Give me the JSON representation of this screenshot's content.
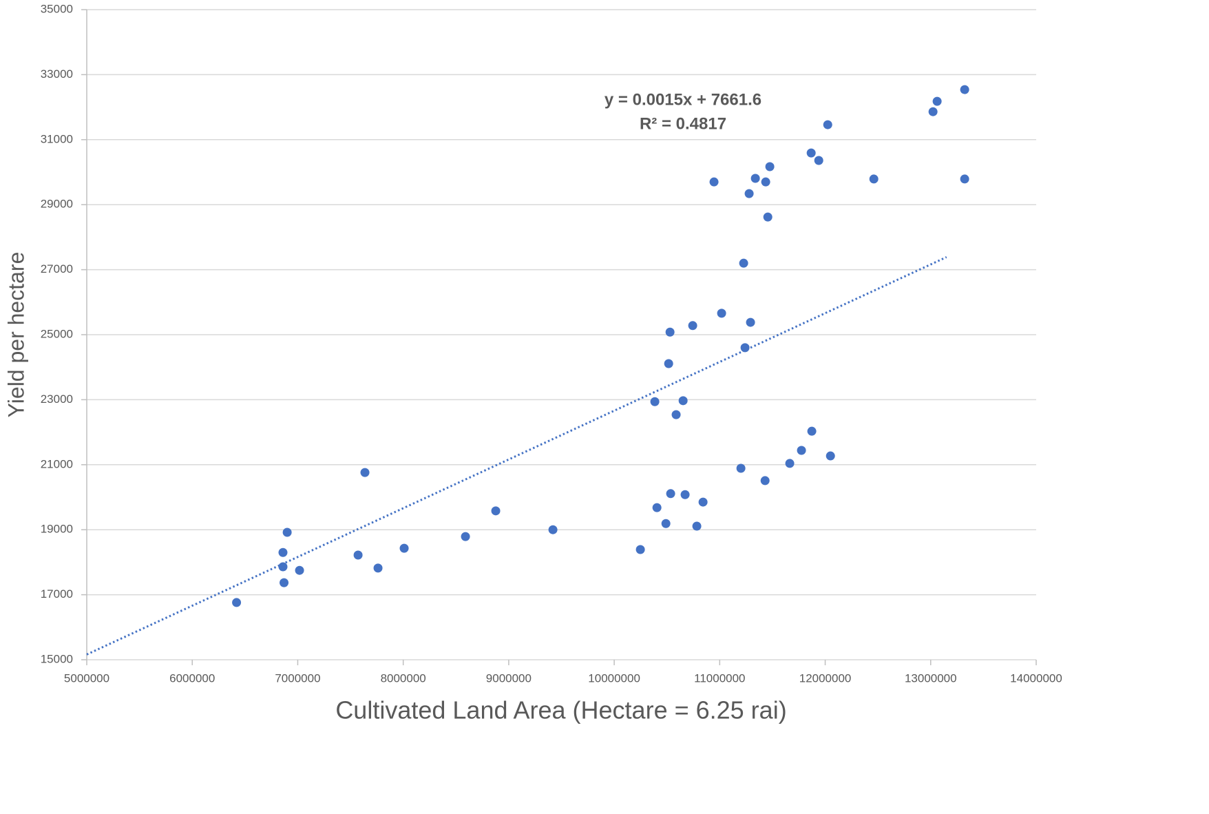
{
  "chart_data": {
    "type": "scatter",
    "x_label": "Cultivated Land Area (Hectare = 6.25 rai)",
    "y_label": "Yield per hectare",
    "xlim": [
      5000000,
      14000000
    ],
    "xticks": [
      5000000,
      6000000,
      7000000,
      8000000,
      9000000,
      10000000,
      11000000,
      12000000,
      13000000,
      14000000
    ],
    "ylim": [
      15000,
      35000
    ],
    "yticks": [
      15000,
      17000,
      19000,
      21000,
      23000,
      25000,
      27000,
      29000,
      31000,
      33000,
      35000
    ],
    "grid": true,
    "series": [
      {
        "color": "#4472c4",
        "x": [
          6420000,
          6860000,
          6900000,
          6860000,
          6870000,
          7017000,
          7637000,
          7572000,
          7761000,
          8009000,
          8590000,
          8877000,
          9419000,
          10248000,
          10405000,
          10490000,
          10535000,
          10672000,
          10783000,
          10842000,
          11201000,
          11430000,
          11664000,
          11775000,
          11873000,
          12050000,
          10385000,
          10653000,
          10587000,
          10516000,
          10529000,
          10744000,
          11018000,
          11240000,
          11292000,
          11227000,
          11456000,
          11279000,
          10946000,
          11338000,
          11436000,
          11475000,
          11867000,
          11939000,
          12024000,
          12461000,
          13022000,
          13061000,
          13322000,
          13322000
        ],
        "values": [
          16760,
          18300,
          18920,
          17860,
          17370,
          17750,
          20760,
          18220,
          17820,
          18430,
          18790,
          19580,
          19000,
          18390,
          19680,
          19190,
          20110,
          20080,
          19110,
          19850,
          20890,
          20510,
          21040,
          21440,
          22030,
          21270,
          22940,
          22970,
          22540,
          24110,
          25080,
          25280,
          25660,
          24600,
          25380,
          27200,
          28620,
          29340,
          29700,
          29810,
          29700,
          30170,
          30590,
          30360,
          31460,
          29790,
          31860,
          32180,
          32540,
          29790
        ]
      }
    ],
    "trendline": {
      "equation": "y = 0.0015x + 7661.6",
      "r_squared": "R² = 0.4817",
      "slope": 0.0015,
      "intercept": 7661.6,
      "x_range": [
        5000000,
        13150000
      ],
      "color": "#4472c4"
    }
  }
}
